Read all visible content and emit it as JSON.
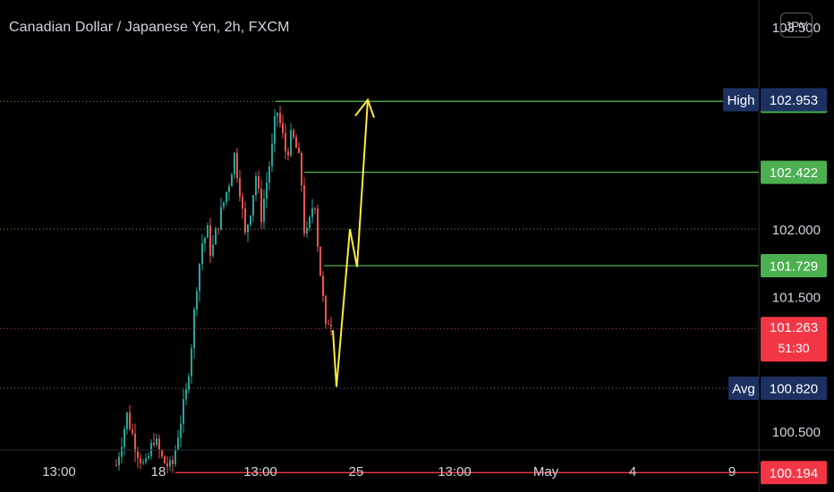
{
  "header": {
    "title": "Canadian Dollar / Japanese Yen, 2h, FXCM",
    "currency": "JPY"
  },
  "colors": {
    "background": "#000000",
    "up": "#26a69a",
    "down": "#ef5350",
    "green_line": "#4caf50",
    "red_line": "#f23645",
    "yellow": "#ffeb3b",
    "navy": "#1c3161"
  },
  "chart_data": {
    "type": "candlestick",
    "symbol": "CADJPY",
    "interval": "2h",
    "y_range": [
      100.05,
      103.7
    ],
    "y_ticks": [
      {
        "value": 103.5,
        "label": "103.500"
      },
      {
        "value": 102.0,
        "label": "102.000"
      },
      {
        "value": 101.5,
        "label": "101.500"
      },
      {
        "value": 100.5,
        "label": "100.500"
      }
    ],
    "x_ticks": [
      "13:00",
      "18",
      "13:00",
      "25",
      "13:00",
      "May",
      "4",
      "9"
    ],
    "horizontal_lines": [
      {
        "value": 102.948,
        "color": "green"
      },
      {
        "value": 102.422,
        "color": "green"
      },
      {
        "value": 101.729,
        "color": "green"
      },
      {
        "value": 100.194,
        "color": "red"
      }
    ],
    "dotted_levels": [
      102.948,
      102.0,
      101.263,
      100.82
    ],
    "labels": [
      {
        "name": "High",
        "value": "102.953"
      },
      {
        "name": "Avg",
        "value": "100.820"
      }
    ],
    "price_labels": [
      {
        "value": "102.948",
        "style": "green"
      },
      {
        "value": "102.422",
        "style": "green"
      },
      {
        "value": "101.729",
        "style": "green"
      },
      {
        "value": "100.194",
        "style": "red"
      }
    ],
    "last_price": {
      "value": "101.263",
      "countdown": "51:30"
    },
    "projection_path": [
      101.25,
      100.83,
      102.0,
      101.72,
      102.96
    ]
  }
}
